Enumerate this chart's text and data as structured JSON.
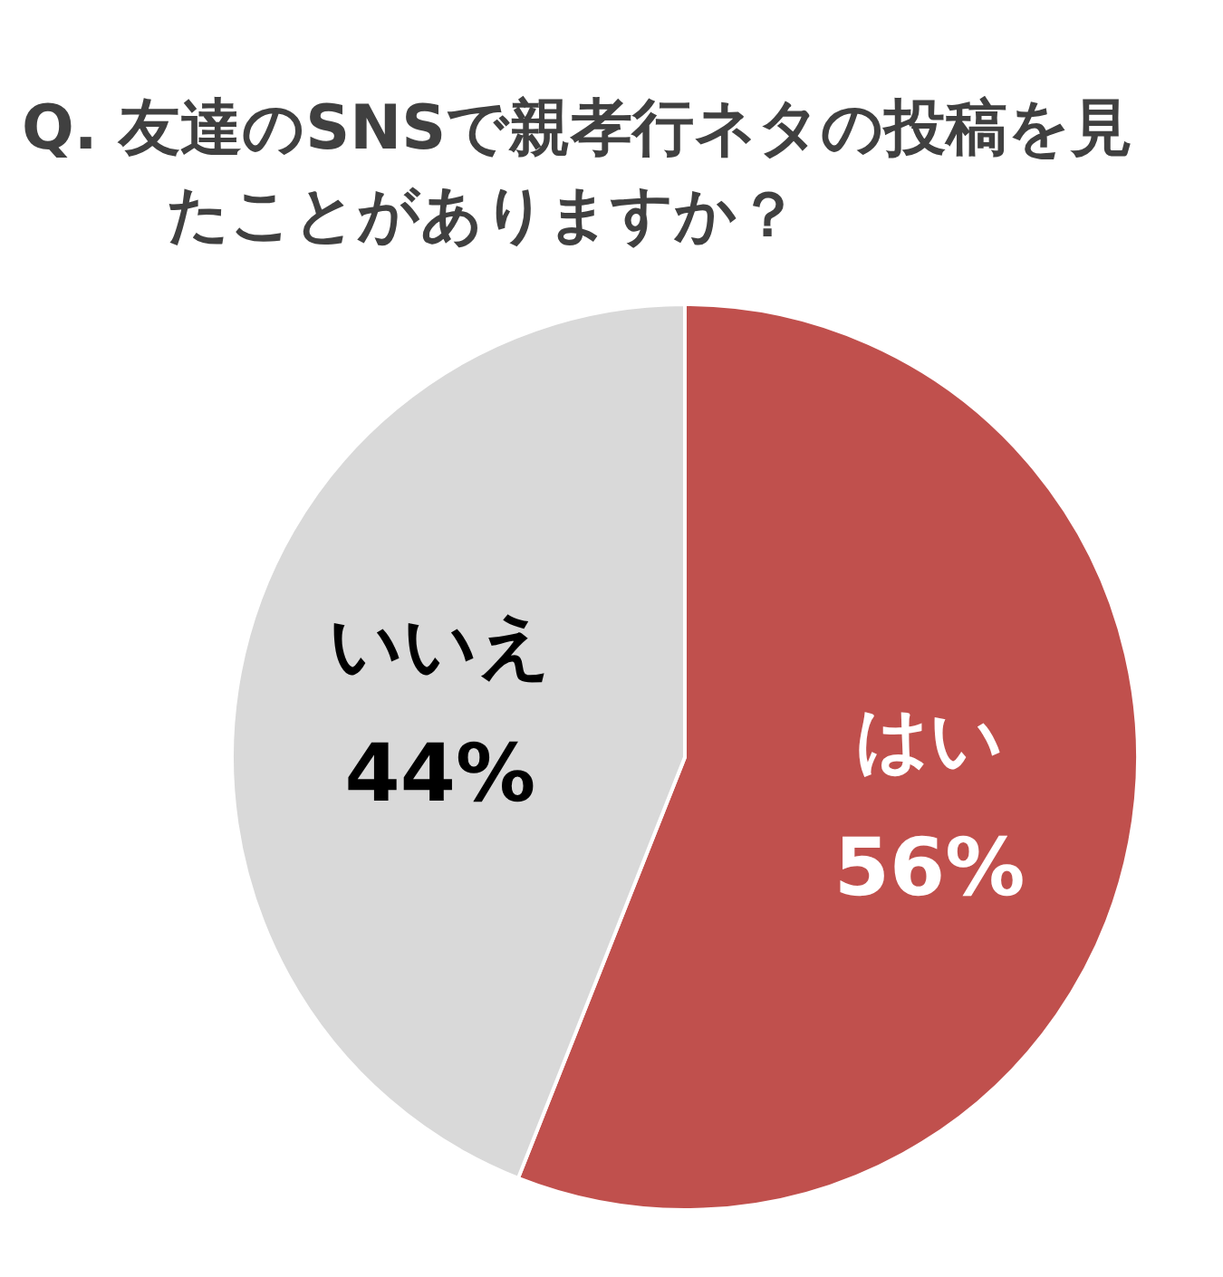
{
  "chart_data": {
    "type": "pie",
    "title": "Q.  友達のSNSで親孝行ネタの投稿を見たことがありますか？",
    "categories": [
      "はい",
      "いいえ"
    ],
    "values": [
      56,
      44
    ],
    "colors": [
      "#c0504d",
      "#d9d9d9"
    ],
    "value_labels": [
      "56%",
      "44%"
    ]
  }
}
